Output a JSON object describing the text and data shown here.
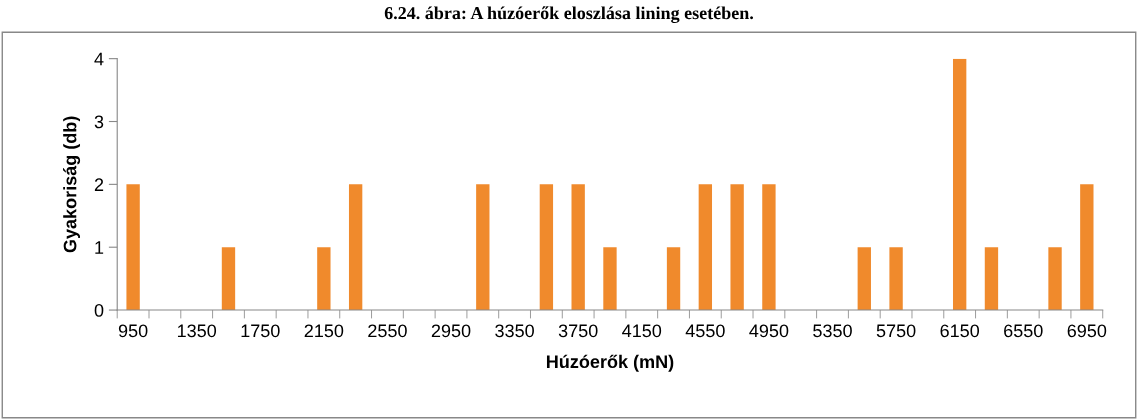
{
  "chart_data": {
    "type": "bar",
    "title": "6.24. ábra: A húzóerők eloszlása lining esetében.",
    "xlabel": "Húzóerők (mN)",
    "ylabel": "Gyakoriság (db)",
    "categories": [
      "950",
      null,
      "1350",
      null,
      "1750",
      null,
      "2150",
      null,
      "2550",
      null,
      "2950",
      null,
      "3350",
      null,
      "3750",
      null,
      "4150",
      null,
      "4550",
      null,
      "4950",
      null,
      "5350",
      null,
      "5750",
      null,
      "6150",
      null,
      "6550",
      null,
      "6950"
    ],
    "values": [
      2,
      0,
      0,
      1,
      0,
      0,
      1,
      2,
      0,
      0,
      0,
      2,
      0,
      2,
      2,
      1,
      0,
      1,
      2,
      2,
      2,
      0,
      0,
      1,
      1,
      0,
      4,
      1,
      0,
      1,
      2
    ],
    "color": "#f08a2c",
    "ylim": [
      0,
      4
    ],
    "yticks": [
      0,
      1,
      2,
      3,
      4
    ],
    "grid": false,
    "legend": false
  }
}
